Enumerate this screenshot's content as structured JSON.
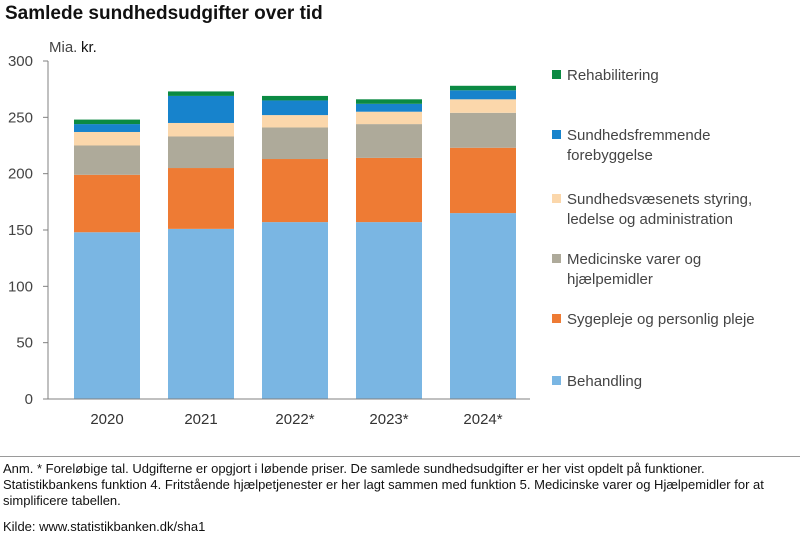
{
  "chart_data": {
    "type": "bar",
    "stacked": true,
    "title": "Samlede sundhedsudgifter over tid",
    "unit_prefix": "Mia.",
    "unit_suffix": "kr.",
    "ylabel": "Mia. kr.",
    "xlabel": "",
    "ylim": [
      0,
      300
    ],
    "yticks": [
      0,
      50,
      100,
      150,
      200,
      250,
      300
    ],
    "grid": false,
    "legend_position": "right",
    "categories": [
      "2020",
      "2021",
      "2022*",
      "2023*",
      "2024*"
    ],
    "series": [
      {
        "name": "Behandling",
        "color": "#7ab6e3",
        "values": [
          148,
          151,
          157,
          157,
          165
        ]
      },
      {
        "name": "Sygepleje og personlig pleje",
        "color": "#ee7b34",
        "values": [
          51,
          54,
          56,
          57,
          58
        ]
      },
      {
        "name": "Medicinske varer og hjælpemidler",
        "color": "#aeaa9a",
        "values": [
          26,
          28,
          28,
          30,
          31
        ]
      },
      {
        "name": "Sundhedsvæsenets styring, ledelse og administration",
        "color": "#fbd7ab",
        "values": [
          12,
          12,
          11,
          11,
          12
        ]
      },
      {
        "name": "Sundhedsfremmende forebyggelse",
        "color": "#1783cc",
        "values": [
          7,
          24,
          13,
          7,
          8
        ]
      },
      {
        "name": "Rehabilitering",
        "color": "#0b8a43",
        "values": [
          4,
          4,
          4,
          4,
          4
        ]
      }
    ],
    "legend": [
      {
        "series_index": 5,
        "lines": [
          "Rehabilitering"
        ]
      },
      {
        "series_index": 4,
        "lines": [
          "Sundhedsfremmende",
          "forebyggelse"
        ]
      },
      {
        "series_index": 3,
        "lines": [
          "Sundhedsvæsenets styring,",
          "ledelse og administration"
        ]
      },
      {
        "series_index": 2,
        "lines": [
          "Medicinske varer og",
          "hjælpemidler"
        ]
      },
      {
        "series_index": 1,
        "lines": [
          "Sygepleje og personlig pleje"
        ]
      },
      {
        "series_index": 0,
        "lines": [
          "Behandling"
        ]
      }
    ]
  },
  "footer": {
    "note": "Anm. * Foreløbige tal. Udgifterne er opgjort i løbende priser. De samlede sundhedsudgifter er her vist opdelt på funktioner. Statistikbankens funktion 4. Fritstående hjælpetjenester er her lagt sammen med funktion 5. Medicinske varer og Hjælpemidler for at simplificere tabellen.",
    "source": "Kilde: www.statistikbanken.dk/sha1"
  }
}
